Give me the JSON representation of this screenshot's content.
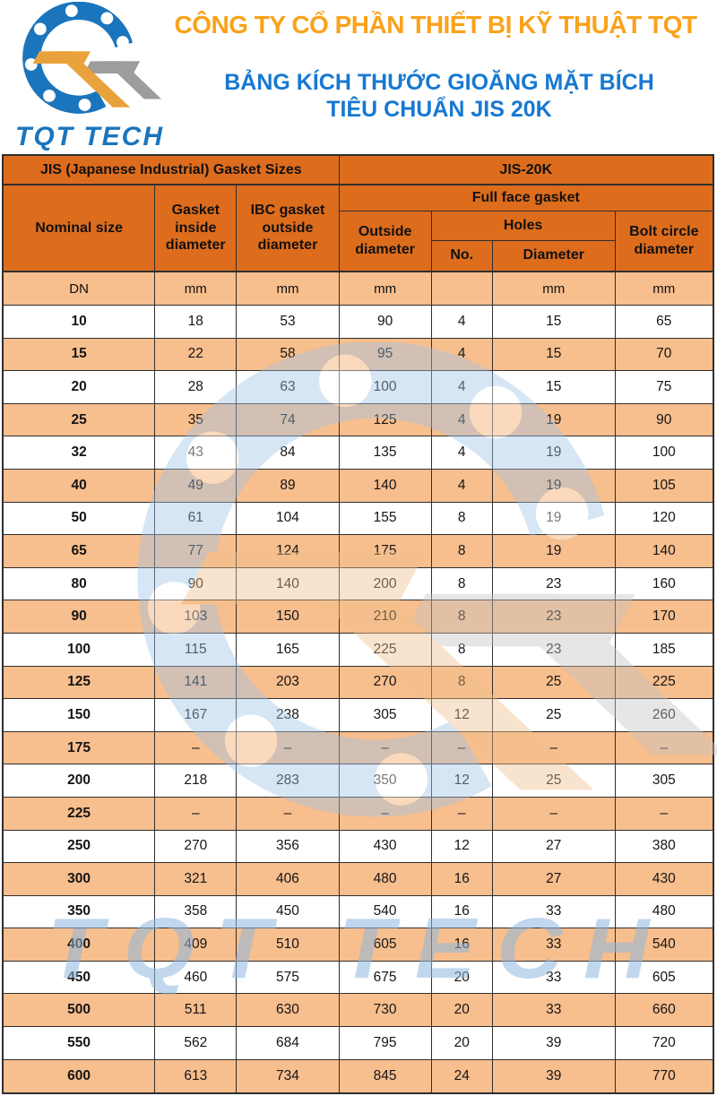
{
  "header": {
    "company_name": "CÔNG TY CỔ PHẦN THIẾT BỊ KỸ THUẬT TQT",
    "subtitle_line1": "BẢNG KÍCH THƯỚC GIOĂNG MẶT BÍCH",
    "subtitle_line2": "TIÊU CHUẨN JIS 20K",
    "logo_text": "TQT TECH",
    "watermark_text": "TQT TECH"
  },
  "table": {
    "group_headers": {
      "left": "JIS (Japanese Industrial) Gasket Sizes",
      "right": "JIS-20K"
    },
    "columns": {
      "nominal_size": "Nominal size",
      "gasket_inside_diameter": "Gasket inside diameter",
      "ibc_gasket_outside_diameter": "IBC gasket outside diameter",
      "full_face_gasket": "Full face gasket",
      "outside_diameter": "Outside diameter",
      "holes": "Holes",
      "holes_no": "No.",
      "holes_diameter": "Diameter",
      "bolt_circle_diameter": "Bolt circle diameter"
    },
    "units": [
      "DN",
      "mm",
      "mm",
      "mm",
      "",
      "mm",
      "mm"
    ],
    "rows": [
      [
        "10",
        "18",
        "53",
        "90",
        "4",
        "15",
        "65"
      ],
      [
        "15",
        "22",
        "58",
        "95",
        "4",
        "15",
        "70"
      ],
      [
        "20",
        "28",
        "63",
        "100",
        "4",
        "15",
        "75"
      ],
      [
        "25",
        "35",
        "74",
        "125",
        "4",
        "19",
        "90"
      ],
      [
        "32",
        "43",
        "84",
        "135",
        "4",
        "19",
        "100"
      ],
      [
        "40",
        "49",
        "89",
        "140",
        "4",
        "19",
        "105"
      ],
      [
        "50",
        "61",
        "104",
        "155",
        "8",
        "19",
        "120"
      ],
      [
        "65",
        "77",
        "124",
        "175",
        "8",
        "19",
        "140"
      ],
      [
        "80",
        "90",
        "140",
        "200",
        "8",
        "23",
        "160"
      ],
      [
        "90",
        "103",
        "150",
        "210",
        "8",
        "23",
        "170"
      ],
      [
        "100",
        "115",
        "165",
        "225",
        "8",
        "23",
        "185"
      ],
      [
        "125",
        "141",
        "203",
        "270",
        "8",
        "25",
        "225"
      ],
      [
        "150",
        "167",
        "238",
        "305",
        "12",
        "25",
        "260"
      ],
      [
        "175",
        "–",
        "–",
        "–",
        "–",
        "–",
        "–"
      ],
      [
        "200",
        "218",
        "283",
        "350",
        "12",
        "25",
        "305"
      ],
      [
        "225",
        "–",
        "–",
        "–",
        "–",
        "–",
        "–"
      ],
      [
        "250",
        "270",
        "356",
        "430",
        "12",
        "27",
        "380"
      ],
      [
        "300",
        "321",
        "406",
        "480",
        "16",
        "27",
        "430"
      ],
      [
        "350",
        "358",
        "450",
        "540",
        "16",
        "33",
        "480"
      ],
      [
        "400",
        "409",
        "510",
        "605",
        "16",
        "33",
        "540"
      ],
      [
        "450",
        "460",
        "575",
        "675",
        "20",
        "33",
        "605"
      ],
      [
        "500",
        "511",
        "630",
        "730",
        "20",
        "33",
        "660"
      ],
      [
        "550",
        "562",
        "684",
        "795",
        "20",
        "39",
        "720"
      ],
      [
        "600",
        "613",
        "734",
        "845",
        "24",
        "39",
        "770"
      ]
    ]
  },
  "colors": {
    "header_orange": "#DE6C1D",
    "row_peach": "#F7BE8E",
    "title_orange": "#F9A21B",
    "title_blue": "#1778D1",
    "logo_blue": "#1B75BC",
    "logo_orange": "#E9A23B",
    "logo_gray": "#9D9D9D",
    "border": "#2F2F2F",
    "watermark_blue": "#9EC4E6"
  }
}
